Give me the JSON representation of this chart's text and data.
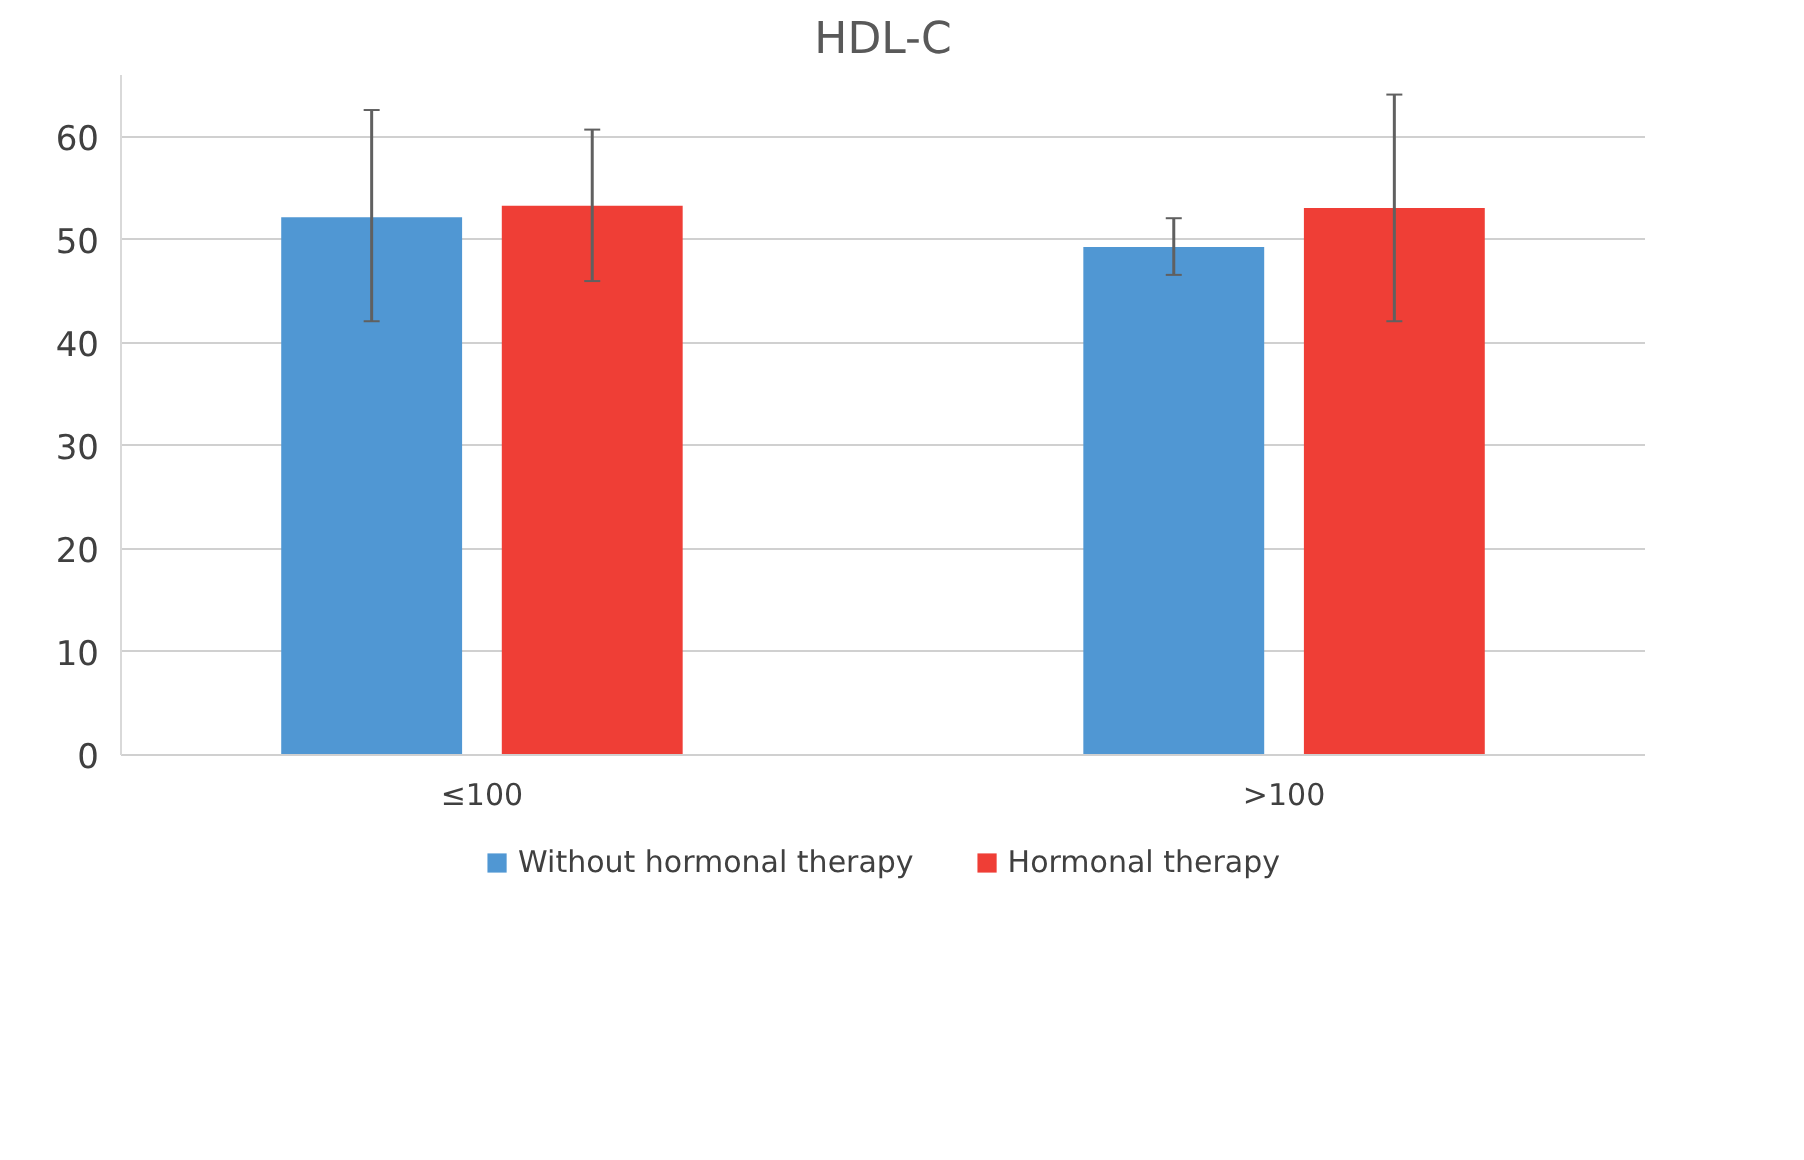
{
  "chart_data": {
    "type": "bar",
    "title": "HDL-C",
    "categories": [
      "≤100",
      ">100"
    ],
    "series": [
      {
        "name": "Without hormonal therapy",
        "color": "#5097d3",
        "values": [
          52.2,
          49.3
        ],
        "errors": [
          [
            42.1,
            62.6
          ],
          [
            46.6,
            52.1
          ]
        ]
      },
      {
        "name": "Hormonal therapy",
        "color": "#ef3e36",
        "values": [
          53.3,
          53.1
        ],
        "errors": [
          [
            46.0,
            60.7
          ],
          [
            42.1,
            64.1
          ]
        ]
      }
    ],
    "ylim": [
      0,
      66
    ],
    "yticks": [
      0,
      10,
      20,
      30,
      40,
      50,
      60
    ],
    "grid": "y",
    "legend": "bottom"
  }
}
